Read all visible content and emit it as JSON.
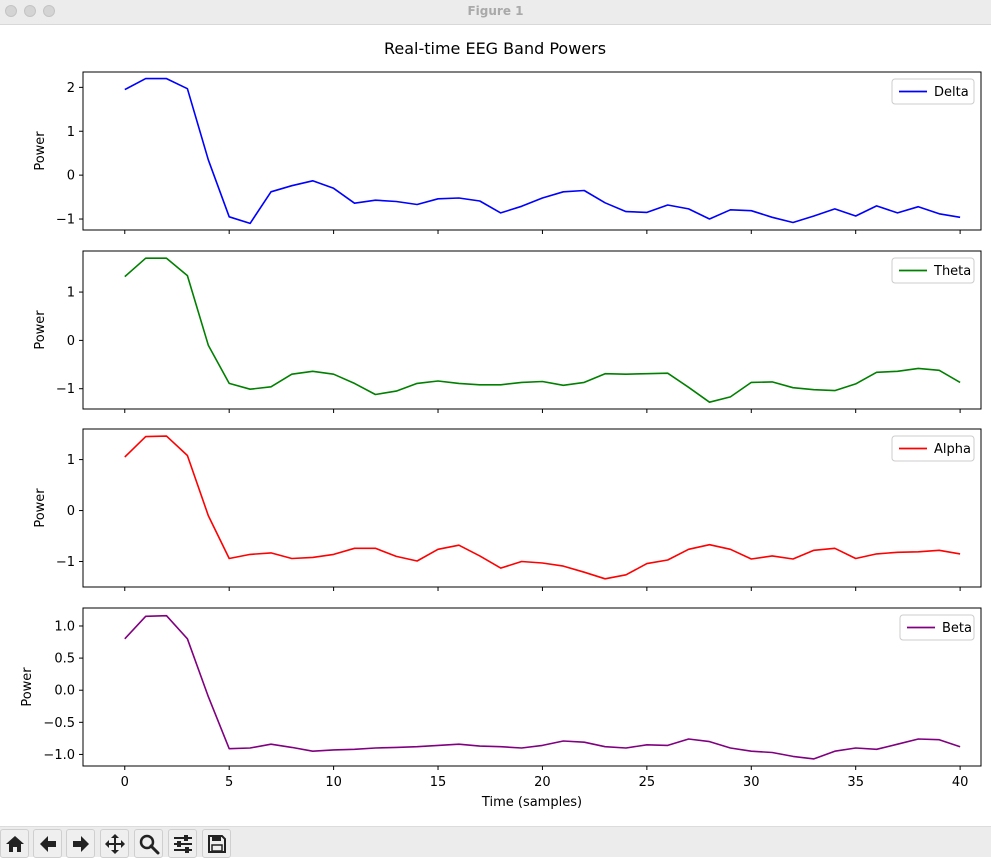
{
  "window": {
    "title": "Figure 1"
  },
  "chart_data": {
    "type": "line",
    "title": "Real-time EEG Band Powers",
    "xlabel": "Time (samples)",
    "xlim": [
      -2,
      41
    ],
    "xticks": [
      0,
      5,
      10,
      15,
      20,
      25,
      30,
      35,
      40
    ],
    "x": [
      0,
      1,
      2,
      3,
      4,
      5,
      6,
      7,
      8,
      9,
      10,
      11,
      12,
      13,
      14,
      15,
      16,
      17,
      18,
      19,
      20,
      21,
      22,
      23,
      24,
      25,
      26,
      27,
      28,
      29,
      30,
      31,
      32,
      33,
      34,
      35,
      36,
      37,
      38,
      39,
      40
    ],
    "legend_placement": "upper right",
    "grid": false,
    "panels": [
      {
        "name": "Delta",
        "color": "#0000ff",
        "ylabel": "Power",
        "ylim": [
          -1.25,
          2.35
        ],
        "yticks": [
          {
            "v": 2,
            "label": "2"
          },
          {
            "v": 1,
            "label": "1"
          },
          {
            "v": 0,
            "label": "0"
          },
          {
            "v": -1,
            "label": "−1"
          }
        ],
        "values": [
          1.95,
          2.2,
          2.2,
          1.97,
          0.35,
          -0.95,
          -1.1,
          -0.38,
          -0.24,
          -0.13,
          -0.3,
          -0.64,
          -0.57,
          -0.6,
          -0.67,
          -0.54,
          -0.52,
          -0.59,
          -0.86,
          -0.71,
          -0.52,
          -0.38,
          -0.35,
          -0.63,
          -0.83,
          -0.85,
          -0.68,
          -0.77,
          -1.0,
          -0.79,
          -0.81,
          -0.96,
          -1.08,
          -0.93,
          -0.77,
          -0.93,
          -0.7,
          -0.86,
          -0.72,
          -0.88,
          -0.96
        ]
      },
      {
        "name": "Theta",
        "color": "#008000",
        "ylabel": "Power",
        "ylim": [
          -1.42,
          1.85
        ],
        "yticks": [
          {
            "v": 1,
            "label": "1"
          },
          {
            "v": 0,
            "label": "0"
          },
          {
            "v": -1,
            "label": "−1"
          }
        ],
        "values": [
          1.32,
          1.7,
          1.7,
          1.34,
          -0.1,
          -0.89,
          -1.01,
          -0.96,
          -0.7,
          -0.64,
          -0.7,
          -0.89,
          -1.12,
          -1.05,
          -0.89,
          -0.84,
          -0.89,
          -0.92,
          -0.92,
          -0.87,
          -0.85,
          -0.93,
          -0.87,
          -0.69,
          -0.7,
          -0.69,
          -0.68,
          -0.97,
          -1.28,
          -1.17,
          -0.87,
          -0.86,
          -0.98,
          -1.02,
          -1.04,
          -0.9,
          -0.66,
          -0.64,
          -0.58,
          -0.62,
          -0.87
        ]
      },
      {
        "name": "Alpha",
        "color": "#ff0000",
        "ylabel": "Power",
        "ylim": [
          -1.5,
          1.6
        ],
        "yticks": [
          {
            "v": 1,
            "label": "1"
          },
          {
            "v": 0,
            "label": "0"
          },
          {
            "v": -1,
            "label": "−1"
          }
        ],
        "values": [
          1.05,
          1.45,
          1.46,
          1.08,
          -0.1,
          -0.94,
          -0.86,
          -0.83,
          -0.94,
          -0.92,
          -0.86,
          -0.74,
          -0.74,
          -0.9,
          -0.99,
          -0.76,
          -0.68,
          -0.89,
          -1.13,
          -1.0,
          -1.03,
          -1.09,
          -1.21,
          -1.34,
          -1.26,
          -1.04,
          -0.97,
          -0.76,
          -0.67,
          -0.76,
          -0.95,
          -0.89,
          -0.95,
          -0.78,
          -0.74,
          -0.94,
          -0.85,
          -0.82,
          -0.81,
          -0.78,
          -0.85
        ]
      },
      {
        "name": "Beta",
        "color": "#800080",
        "ylabel": "Power",
        "ylim": [
          -1.18,
          1.28
        ],
        "yticks": [
          {
            "v": 1,
            "label": "1.0"
          },
          {
            "v": 0.5,
            "label": "0.5"
          },
          {
            "v": 0,
            "label": "0.0"
          },
          {
            "v": -0.5,
            "label": "−0.5"
          },
          {
            "v": -1,
            "label": "−1.0"
          }
        ],
        "values": [
          0.8,
          1.15,
          1.16,
          0.8,
          -0.1,
          -0.91,
          -0.9,
          -0.84,
          -0.89,
          -0.95,
          -0.93,
          -0.92,
          -0.9,
          -0.89,
          -0.88,
          -0.86,
          -0.84,
          -0.87,
          -0.88,
          -0.9,
          -0.86,
          -0.79,
          -0.81,
          -0.88,
          -0.9,
          -0.85,
          -0.86,
          -0.76,
          -0.8,
          -0.9,
          -0.95,
          -0.97,
          -1.03,
          -1.07,
          -0.95,
          -0.9,
          -0.92,
          -0.84,
          -0.76,
          -0.77,
          -0.88
        ]
      }
    ]
  },
  "toolbar": {
    "buttons": [
      {
        "name": "home-button",
        "icon": "home-icon"
      },
      {
        "name": "back-button",
        "icon": "arrow-left-icon"
      },
      {
        "name": "forward-button",
        "icon": "arrow-right-icon"
      },
      {
        "name": "pan-button",
        "icon": "move-icon"
      },
      {
        "name": "zoom-button",
        "icon": "magnifier-icon"
      },
      {
        "name": "configure-subplots-button",
        "icon": "sliders-icon"
      },
      {
        "name": "save-button",
        "icon": "floppy-disk-icon"
      }
    ]
  }
}
